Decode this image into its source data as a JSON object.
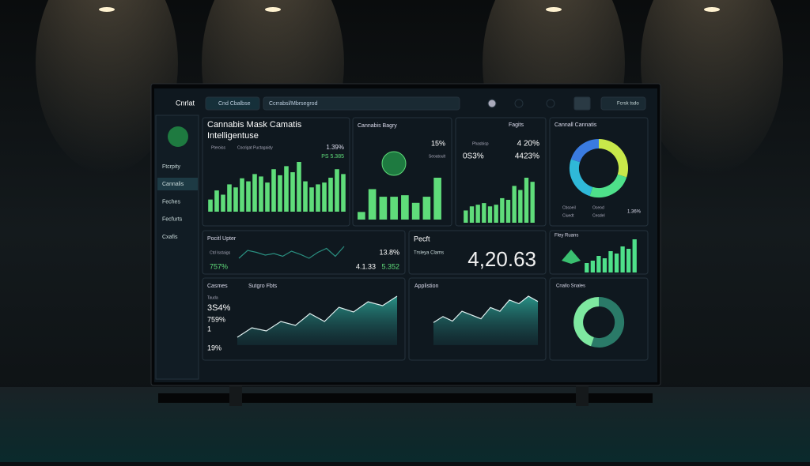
{
  "brand": "Cnrlat",
  "nav": [
    "Ftcrpity",
    "Cannalis",
    "Feches",
    "Fecfurts",
    "Cxafis"
  ],
  "topbar": {
    "tab": "Cnd Cbalbse",
    "search": "Ccrrabsl/Mbrsegrod",
    "user": "Fcrsk tsdo"
  },
  "main": {
    "title": "Cannabis Mask Camatis",
    "subtitle": "Intelligentuse",
    "legend": [
      "Pteroiss",
      "Cocrigat Puctagaidy"
    ],
    "stats": [
      "1.39%",
      "PS 5.385"
    ],
    "color": "#5fdc7a",
    "values": [
      20,
      35,
      28,
      45,
      40,
      55,
      50,
      62,
      58,
      48,
      70,
      60,
      75,
      65,
      82,
      50,
      40,
      45,
      48,
      56,
      70,
      62
    ]
  },
  "bagry": {
    "title": "Cannabis Bagry",
    "stats": [
      "15%",
      "Seoatoult"
    ],
    "color": "#5fdc7a",
    "values": [
      10,
      40,
      30,
      30,
      32,
      22,
      30,
      55
    ]
  },
  "fagits": {
    "title": "Fagits",
    "stats": [
      "Phasbisp",
      "4 20%",
      "0S3%",
      "4423%"
    ],
    "color": "#5fdc7a",
    "values": [
      15,
      20,
      22,
      24,
      20,
      22,
      30,
      28,
      45,
      40,
      55,
      50
    ]
  },
  "donut1": {
    "title": "Cannall Cannatis",
    "legend": [
      "Cbsoeil",
      "Oceod",
      "Ciuedt",
      "Cesdel"
    ],
    "stat": "1.36%",
    "colors": [
      "#c8e84a",
      "#4ee08a",
      "#2fb8d8",
      "#3a7be0"
    ],
    "values": [
      30,
      25,
      25,
      20
    ]
  },
  "pocitl": {
    "title": "Pocitl Upter",
    "stats": [
      "Ctd Isstaigs",
      "757%",
      "13.8%",
      "4.1.33",
      "5.352"
    ],
    "color": "#2a8f80",
    "values": [
      30,
      50,
      45,
      38,
      42,
      35,
      48,
      40,
      30,
      45,
      55,
      35,
      60
    ]
  },
  "pecft": {
    "title": "Pecft",
    "label": "Trsleya Clams",
    "value": "4,20.63"
  },
  "fley": {
    "title": "Fley Ruans",
    "color": "#4ee08a",
    "values": [
      20,
      25,
      35,
      30,
      45,
      40,
      55,
      50,
      70
    ]
  },
  "casmes": {
    "title": "Casmes",
    "stats": [
      "Tauda",
      "3S4%",
      "759%",
      "1",
      "19%"
    ],
    "chart_title": "Sutgro Fbts",
    "color": "#2a8f80",
    "values": [
      10,
      22,
      18,
      30,
      25,
      40,
      30,
      48,
      42,
      55,
      50,
      62
    ]
  },
  "applistion": {
    "title": "Applistion",
    "color": "#2a8f80",
    "values": [
      30,
      38,
      32,
      45,
      40,
      35,
      50,
      45,
      60,
      55,
      65,
      58
    ]
  },
  "donut2": {
    "title": "Cnallo Snales",
    "colors": [
      "#2a7a68",
      "#7ee8a0"
    ],
    "values": [
      55,
      45
    ]
  }
}
